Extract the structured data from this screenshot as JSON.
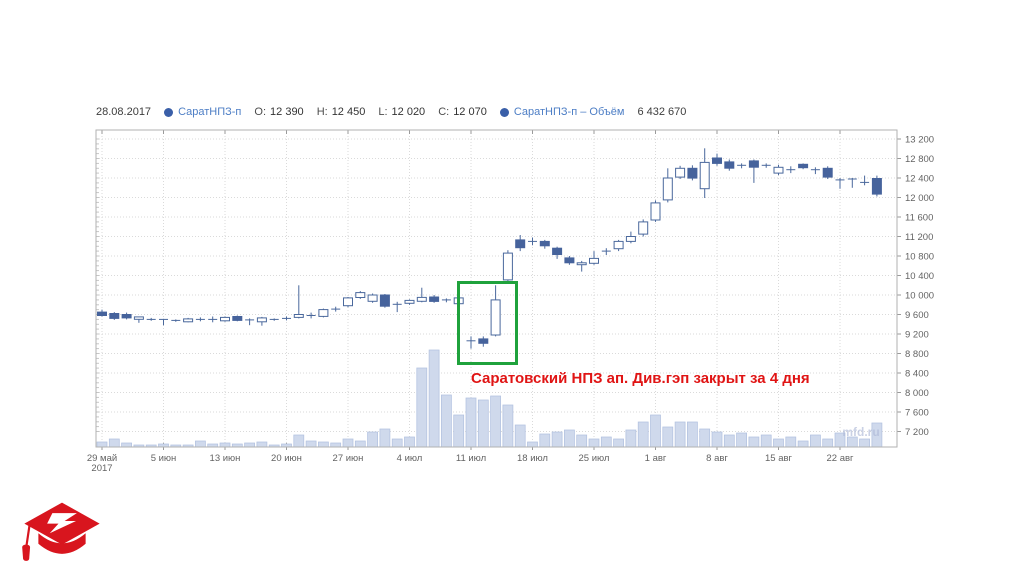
{
  "header": {
    "date": "28.08.2017",
    "ticker": "СаратНПЗ-п",
    "bullet_color": "#3a5fa8",
    "ticker_color": "#4d7ec5",
    "ohlc": [
      {
        "k": "O:",
        "v": "12 390"
      },
      {
        "k": "H:",
        "v": "12 450"
      },
      {
        "k": "L:",
        "v": "12 020"
      },
      {
        "k": "C:",
        "v": "12 070"
      }
    ],
    "volume_series_label": "СаратНПЗ-п – Объём",
    "volume_value": "6 432 670"
  },
  "chart_data": {
    "type": "candlestick",
    "title": "",
    "xlabel": "",
    "ylabel": "",
    "ylim": [
      7050,
      13380
    ],
    "grid": true,
    "price_ticks": [
      13200,
      12800,
      12400,
      12000,
      11600,
      11200,
      10800,
      10400,
      10000,
      9600,
      9200,
      8800,
      8400,
      8000,
      7600,
      7200
    ],
    "x_ticks": [
      {
        "label": "29 май",
        "sublabel": "2017",
        "index": 0
      },
      {
        "label": "5 июн",
        "index": 5
      },
      {
        "label": "13 июн",
        "index": 10
      },
      {
        "label": "20 июн",
        "index": 15
      },
      {
        "label": "27 июн",
        "index": 20
      },
      {
        "label": "4 июл",
        "index": 25
      },
      {
        "label": "11 июл",
        "index": 30
      },
      {
        "label": "18 июл",
        "index": 35
      },
      {
        "label": "25 июл",
        "index": 40
      },
      {
        "label": "1 авг",
        "index": 45
      },
      {
        "label": "8 авг",
        "index": 50
      },
      {
        "label": "15 авг",
        "index": 55
      },
      {
        "label": "22 авг",
        "index": 60
      }
    ],
    "candles": [
      [
        9650,
        9700,
        9560,
        9580
      ],
      [
        9620,
        9650,
        9490,
        9520
      ],
      [
        9600,
        9640,
        9500,
        9530
      ],
      [
        9500,
        9560,
        9430,
        9550
      ],
      [
        9500,
        9530,
        9470,
        9500
      ],
      [
        9490,
        9510,
        9380,
        9500
      ],
      [
        9480,
        9500,
        9450,
        9470
      ],
      [
        9450,
        9530,
        9440,
        9510
      ],
      [
        9500,
        9540,
        9460,
        9490
      ],
      [
        9490,
        9560,
        9440,
        9500
      ],
      [
        9470,
        9560,
        9450,
        9540
      ],
      [
        9560,
        9580,
        9460,
        9480
      ],
      [
        9490,
        9520,
        9380,
        9480
      ],
      [
        9450,
        9550,
        9370,
        9530
      ],
      [
        9500,
        9520,
        9470,
        9500
      ],
      [
        9510,
        9560,
        9480,
        9520
      ],
      [
        9540,
        10200,
        9520,
        9600
      ],
      [
        9580,
        9640,
        9520,
        9560
      ],
      [
        9560,
        9720,
        9540,
        9700
      ],
      [
        9700,
        9760,
        9660,
        9710
      ],
      [
        9780,
        9960,
        9750,
        9940
      ],
      [
        9950,
        10080,
        9920,
        10050
      ],
      [
        9870,
        10030,
        9840,
        10000
      ],
      [
        10000,
        10020,
        9740,
        9770
      ],
      [
        9800,
        9860,
        9650,
        9810
      ],
      [
        9830,
        9910,
        9800,
        9890
      ],
      [
        9870,
        10150,
        9850,
        9950
      ],
      [
        9960,
        10000,
        9840,
        9870
      ],
      [
        9900,
        9930,
        9850,
        9870
      ],
      [
        9820,
        9970,
        9800,
        9940
      ],
      [
        9060,
        9150,
        8900,
        9050
      ],
      [
        9100,
        9150,
        8940,
        9010
      ],
      [
        9180,
        10200,
        9150,
        9900
      ],
      [
        10310,
        10920,
        10280,
        10860
      ],
      [
        11130,
        11230,
        10900,
        10970
      ],
      [
        11080,
        11180,
        11020,
        11100
      ],
      [
        11100,
        11130,
        10950,
        11010
      ],
      [
        10960,
        10990,
        10740,
        10830
      ],
      [
        10760,
        10800,
        10620,
        10660
      ],
      [
        10620,
        10700,
        10480,
        10660
      ],
      [
        10650,
        10900,
        10620,
        10750
      ],
      [
        10880,
        10960,
        10820,
        10900
      ],
      [
        10950,
        11130,
        10900,
        11100
      ],
      [
        11100,
        11300,
        11060,
        11200
      ],
      [
        11250,
        11550,
        11200,
        11500
      ],
      [
        11540,
        11940,
        11500,
        11890
      ],
      [
        11950,
        12600,
        11900,
        12400
      ],
      [
        12420,
        12650,
        12380,
        12600
      ],
      [
        12600,
        12660,
        12350,
        12400
      ],
      [
        12180,
        13010,
        11990,
        12720
      ],
      [
        12810,
        12900,
        12650,
        12700
      ],
      [
        12730,
        12780,
        12550,
        12600
      ],
      [
        12640,
        12700,
        12600,
        12660
      ],
      [
        12750,
        12780,
        12300,
        12620
      ],
      [
        12650,
        12700,
        12610,
        12660
      ],
      [
        12500,
        12670,
        12460,
        12620
      ],
      [
        12560,
        12640,
        12500,
        12570
      ],
      [
        12680,
        12700,
        12580,
        12610
      ],
      [
        12560,
        12620,
        12480,
        12570
      ],
      [
        12600,
        12640,
        12380,
        12420
      ],
      [
        12360,
        12400,
        12180,
        12350
      ],
      [
        12380,
        12400,
        12200,
        12350
      ],
      [
        12300,
        12450,
        12250,
        12310
      ],
      [
        12390,
        12450,
        12020,
        12070
      ]
    ],
    "volumes_relative": [
      5,
      8,
      4,
      2,
      2,
      3,
      2,
      2,
      6,
      3,
      4,
      3,
      4,
      5,
      2,
      3,
      12,
      6,
      5,
      4,
      8,
      6,
      15,
      18,
      8,
      10,
      79,
      97,
      52,
      32,
      49,
      47,
      51,
      42,
      22,
      5,
      13,
      15,
      17,
      12,
      8,
      10,
      8,
      17,
      25,
      32,
      20,
      25,
      25,
      18,
      15,
      12,
      14,
      10,
      12,
      8,
      10,
      6,
      12,
      8,
      14,
      10,
      8,
      24
    ],
    "colors": {
      "up_fill": "#ffffff",
      "down_fill": "#46639c",
      "candle_border": "#4a689c",
      "volume_fill": "#cfd9ec",
      "grid": "#dadada"
    },
    "annotations": {
      "box": {
        "start_index": 28.9,
        "end_index": 33.8,
        "price_top": 10290,
        "price_bottom": 8560,
        "color": "#1fa23c"
      },
      "label": {
        "text": "Саратовский НПЗ ап. Див.гэп закрыт за 4 дня",
        "color": "#e01414"
      },
      "watermark": "mfd.ru"
    }
  }
}
